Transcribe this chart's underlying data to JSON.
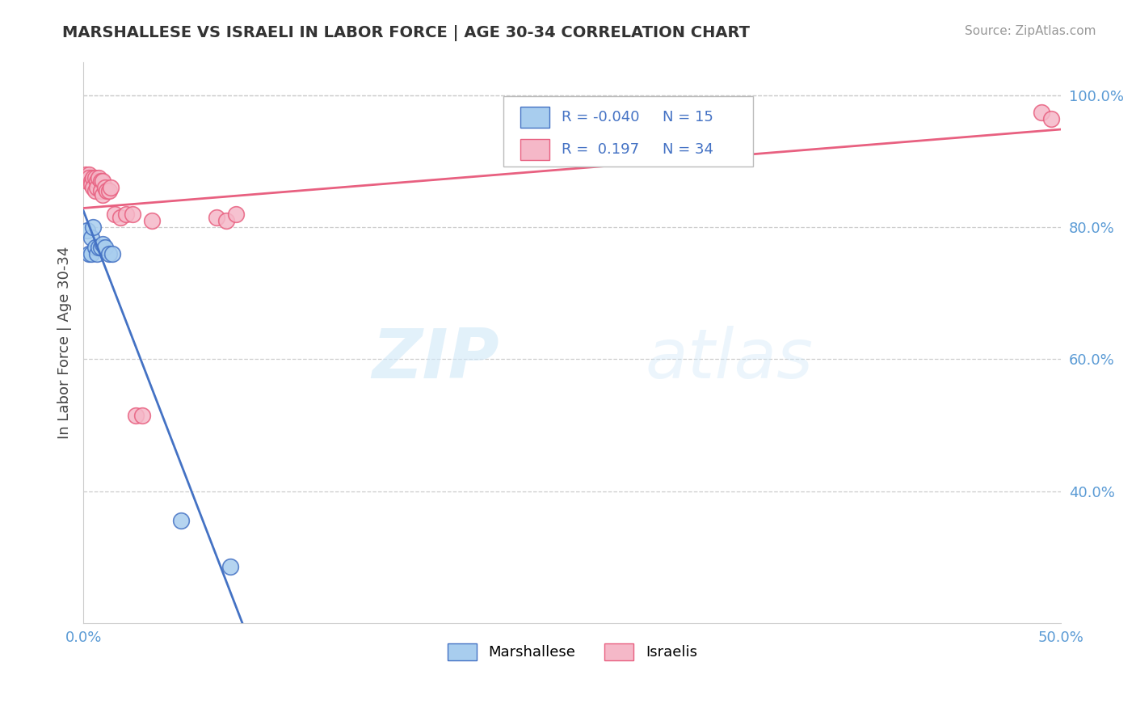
{
  "title": "MARSHALLESE VS ISRAELI IN LABOR FORCE | AGE 30-34 CORRELATION CHART",
  "source": "Source: ZipAtlas.com",
  "ylabel": "In Labor Force | Age 30-34",
  "xlim": [
    0.0,
    0.5
  ],
  "ylim": [
    0.2,
    1.05
  ],
  "watermark_zip": "ZIP",
  "watermark_atlas": "atlas",
  "blue_R": "-0.040",
  "blue_N": "15",
  "pink_R": "0.197",
  "pink_N": "34",
  "blue_color": "#A8CDEE",
  "pink_color": "#F5B8C8",
  "blue_line_color": "#4472C4",
  "pink_line_color": "#E86080",
  "marshallese_x": [
    0.002,
    0.003,
    0.004,
    0.004,
    0.005,
    0.006,
    0.007,
    0.008,
    0.009,
    0.01,
    0.011,
    0.013,
    0.015,
    0.05,
    0.075
  ],
  "marshallese_y": [
    0.795,
    0.76,
    0.785,
    0.76,
    0.8,
    0.77,
    0.76,
    0.77,
    0.77,
    0.775,
    0.77,
    0.76,
    0.76,
    0.355,
    0.285
  ],
  "israelis_x": [
    0.001,
    0.002,
    0.002,
    0.003,
    0.003,
    0.004,
    0.004,
    0.005,
    0.005,
    0.006,
    0.006,
    0.007,
    0.007,
    0.008,
    0.009,
    0.009,
    0.01,
    0.01,
    0.011,
    0.012,
    0.013,
    0.014,
    0.016,
    0.019,
    0.022,
    0.025,
    0.027,
    0.03,
    0.035,
    0.068,
    0.073,
    0.078,
    0.49,
    0.495
  ],
  "israelis_y": [
    0.88,
    0.875,
    0.87,
    0.88,
    0.875,
    0.87,
    0.865,
    0.875,
    0.86,
    0.875,
    0.855,
    0.87,
    0.86,
    0.875,
    0.87,
    0.855,
    0.87,
    0.85,
    0.86,
    0.855,
    0.855,
    0.86,
    0.82,
    0.815,
    0.82,
    0.82,
    0.515,
    0.515,
    0.81,
    0.815,
    0.81,
    0.82,
    0.975,
    0.965
  ],
  "grid_color": "#CCCCCC",
  "background_color": "#FFFFFF",
  "title_color": "#333333",
  "axis_tick_color": "#5B9BD5",
  "right_ytick_values": [
    0.4,
    0.6,
    0.8,
    1.0
  ],
  "right_ytick_labels": [
    "40.0%",
    "60.0%",
    "80.0%",
    "100.0%"
  ]
}
